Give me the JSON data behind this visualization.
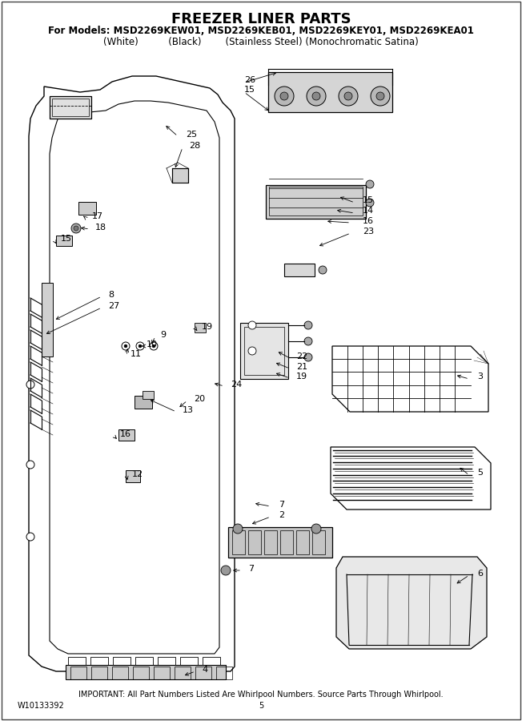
{
  "title": "FREEZER LINER PARTS",
  "subtitle1": "For Models: MSD2269KEW01, MSD2269KEB01, MSD2269KEY01, MSD2269KEA01",
  "subtitle2": "(White)          (Black)        (Stainless Steel) (Monochromatic Satina)",
  "footer1": "IMPORTANT: All Part Numbers Listed Are Whirlpool Numbers. Source Parts Through Whirlpool.",
  "footer2_left": "W10133392",
  "footer2_center": "5",
  "bg_color": "#ffffff",
  "line_color": "#000000",
  "title_fontsize": 13,
  "subtitle_fontsize": 8.5,
  "label_fontsize": 8,
  "footer_fontsize": 7
}
